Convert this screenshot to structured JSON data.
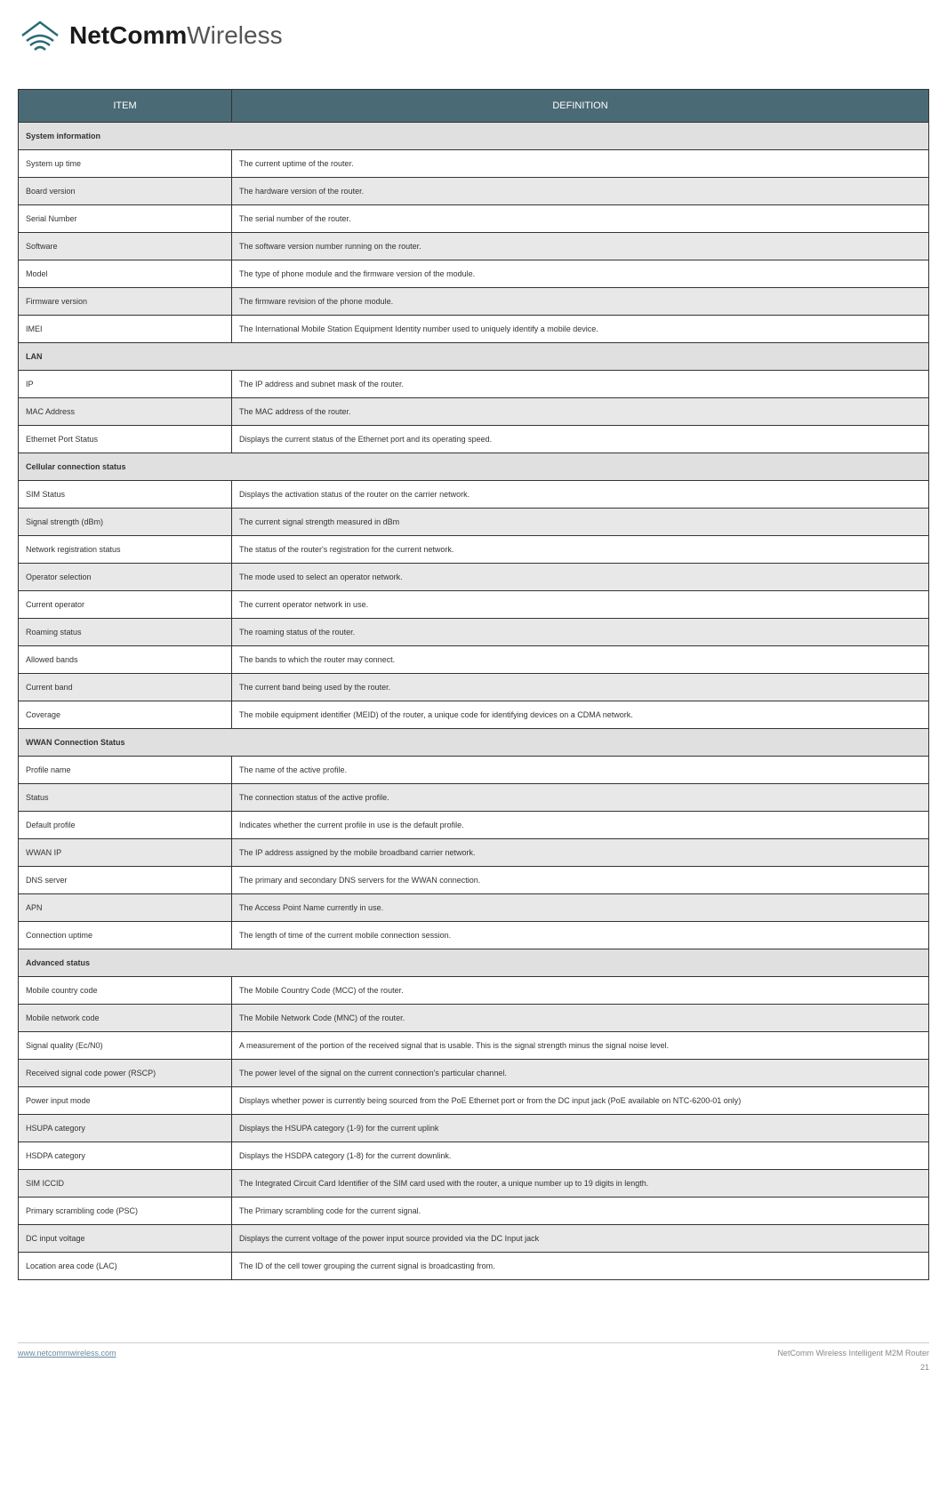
{
  "logo": {
    "brand_bold": "NetComm",
    "brand_light": "Wireless"
  },
  "headers": {
    "item": "ITEM",
    "definition": "DEFINITION"
  },
  "sections": [
    {
      "title": "System information",
      "rows": [
        {
          "item": "System up time",
          "def": "The current uptime of the router."
        },
        {
          "item": "Board version",
          "def": "The hardware version of the router."
        },
        {
          "item": "Serial Number",
          "def": "The serial number of the router."
        },
        {
          "item": "Software",
          "def": "The software version number running on the router."
        },
        {
          "item": "Model",
          "def": "The type of phone module and the firmware version of the module."
        },
        {
          "item": "Firmware version",
          "def": "The firmware revision of the phone module."
        },
        {
          "item": "IMEI",
          "def": "The International Mobile Station Equipment Identity number used to uniquely identify a mobile device."
        }
      ]
    },
    {
      "title": "LAN",
      "rows": [
        {
          "item": "IP",
          "def": "The IP address and subnet mask of the router."
        },
        {
          "item": "MAC Address",
          "def": "The MAC address of the router."
        },
        {
          "item": "Ethernet Port Status",
          "def": "Displays the current status of the Ethernet port and its operating speed."
        }
      ]
    },
    {
      "title": "Cellular connection status",
      "rows": [
        {
          "item": "SIM Status",
          "def": "Displays the activation status of the router on the carrier network."
        },
        {
          "item": "Signal strength (dBm)",
          "def": "The current signal strength measured in dBm"
        },
        {
          "item": "Network registration status",
          "def": "The status of the router's registration for the current network."
        },
        {
          "item": "Operator selection",
          "def": "The mode used to select an operator network."
        },
        {
          "item": "Current operator",
          "def": "The current operator network in use."
        },
        {
          "item": "Roaming status",
          "def": "The roaming status of the router."
        },
        {
          "item": "Allowed bands",
          "def": "The bands to which the router may connect."
        },
        {
          "item": "Current band",
          "def": "The current band being used by the router."
        },
        {
          "item": "Coverage",
          "def": "The mobile equipment identifier (MEID) of the router, a unique code for identifying devices on a CDMA network."
        }
      ]
    },
    {
      "title": "WWAN Connection Status",
      "rows": [
        {
          "item": "Profile name",
          "def": "The name of the active profile."
        },
        {
          "item": "Status",
          "def": "The connection status of the active profile."
        },
        {
          "item": "Default profile",
          "def": "Indicates whether the current profile in use is the default profile."
        },
        {
          "item": "WWAN IP",
          "def": "The IP address assigned by the mobile broadband carrier network."
        },
        {
          "item": "DNS server",
          "def": "The primary and secondary DNS servers for the WWAN connection."
        },
        {
          "item": "APN",
          "def": "The Access Point Name currently in use."
        },
        {
          "item": "Connection uptime",
          "def": "The length of time of the current mobile connection session."
        }
      ]
    },
    {
      "title": "Advanced status",
      "rows": [
        {
          "item": "Mobile country code",
          "def": "The Mobile Country Code (MCC) of the router."
        },
        {
          "item": "Mobile network code",
          "def": "The Mobile Network Code (MNC) of the router."
        },
        {
          "item": "Signal quality (Ec/N0)",
          "def": "A measurement of the portion of the received signal that is usable. This is the signal strength minus the signal noise level."
        },
        {
          "item": "Received signal code power (RSCP)",
          "def": "The power level of the signal on the current connection's particular channel."
        },
        {
          "item": "Power input mode",
          "def": "Displays whether power is currently being sourced from the PoE Ethernet port or from the DC input jack (PoE available on NTC-6200-01 only)"
        },
        {
          "item": "HSUPA category",
          "def": "Displays the HSUPA category (1-9) for the current uplink"
        },
        {
          "item": "HSDPA category",
          "def": "Displays the HSDPA category (1-8) for the current downlink."
        },
        {
          "item": "SIM ICCID",
          "def": "The Integrated Circuit Card Identifier of the SIM card used with the router, a unique number up to 19 digits in length."
        },
        {
          "item": "Primary scrambling code (PSC)",
          "def": "The Primary scrambling code for the current signal."
        },
        {
          "item": "DC input voltage",
          "def": "Displays the current voltage of the power input source provided via the DC Input jack"
        },
        {
          "item": "Location area code (LAC)",
          "def": "The ID of the cell tower grouping the current signal is broadcasting from."
        }
      ]
    }
  ],
  "footer": {
    "link": "www.netcommwireless.com",
    "product": "NetComm Wireless Intelligent M2M Router",
    "page": "21"
  },
  "colors": {
    "header_bg": "#4a6a75",
    "header_fg": "#ffffff",
    "section_bg": "#e0e0e0",
    "alt_bg": "#e8e8e8",
    "norm_bg": "#ffffff",
    "border": "#333333",
    "logo_stroke": "#2a6a75"
  }
}
